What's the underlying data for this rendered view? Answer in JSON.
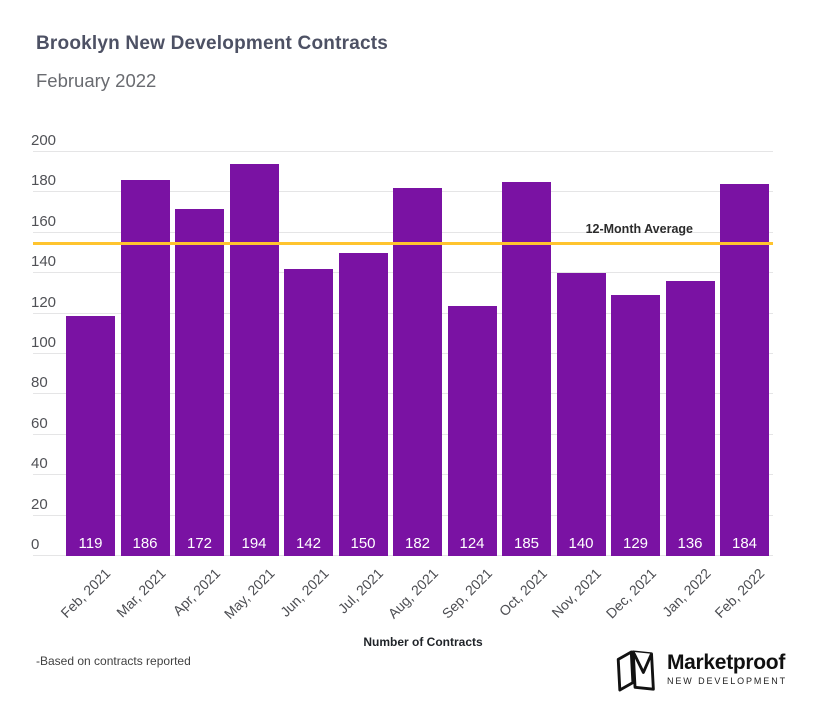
{
  "header": {
    "title": "Brooklyn New Development Contracts",
    "subtitle": "February 2022"
  },
  "chart_data": {
    "type": "bar",
    "title": "Brooklyn New Development Contracts",
    "subtitle": "February 2022",
    "categories": [
      "Feb, 2021",
      "Mar, 2021",
      "Apr, 2021",
      "May, 2021",
      "Jun, 2021",
      "Jul, 2021",
      "Aug, 2021",
      "Sep, 2021",
      "Oct, 2021",
      "Nov, 2021",
      "Dec, 2021",
      "Jan, 2022",
      "Feb, 2022"
    ],
    "values": [
      119,
      186,
      172,
      194,
      142,
      150,
      182,
      124,
      185,
      140,
      129,
      136,
      184
    ],
    "xlabel": "Number of Contracts",
    "ylabel": "",
    "ylim": [
      0,
      200
    ],
    "ytick_step": 20,
    "grid": true,
    "legend": "none",
    "bar_color": "#7A12A3",
    "value_label_color": "#FFFFFF",
    "gridline_color": "#e5e5e6",
    "average_line": {
      "label": "12-Month Average",
      "value": 154.9,
      "color": "#FFC42E"
    }
  },
  "footer": {
    "note": "-Based on contracts reported"
  },
  "logo": {
    "name": "Marketproof",
    "tagline": "NEW DEVELOPMENT"
  }
}
